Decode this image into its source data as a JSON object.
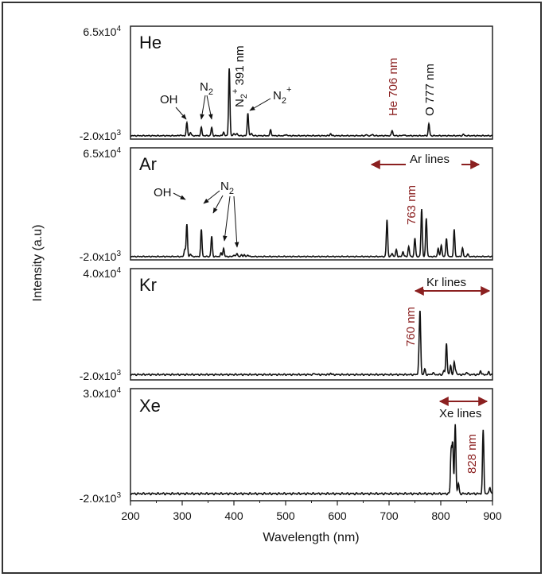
{
  "chart_data": {
    "type": "line",
    "xlabel": "Wavelength (nm)",
    "ylabel": "Intensity (a.u)",
    "xlim": [
      200,
      900
    ],
    "xticks": [
      "200",
      "300",
      "400",
      "500",
      "600",
      "700",
      "800",
      "900"
    ],
    "colors": {
      "line": "#111111",
      "accent": "#8b2020"
    },
    "panels": [
      {
        "gas": "He",
        "ylim_labels": {
          "top": "6.5x10",
          "top_exp": "4",
          "bottom": "-2.0x10",
          "bottom_exp": "3"
        },
        "ylim": [
          -2000,
          65000
        ],
        "peaks": [
          [
            296,
            0.5
          ],
          [
            309,
            7.5
          ],
          [
            316,
            2.0
          ],
          [
            337,
            4.8
          ],
          [
            357,
            4.8
          ],
          [
            380,
            2.2
          ],
          [
            391,
            40.0
          ],
          [
            400,
            1.5
          ],
          [
            406,
            1.5
          ],
          [
            427,
            13.5
          ],
          [
            434,
            1.5
          ],
          [
            471,
            3.5
          ],
          [
            501,
            0.8
          ],
          [
            587,
            1.2
          ],
          [
            656,
            0.6
          ],
          [
            668,
            0.8
          ],
          [
            706,
            3.2
          ],
          [
            728,
            0.6
          ],
          [
            777,
            7.0
          ],
          [
            844,
            0.8
          ]
        ],
        "annotations": [
          {
            "text": "OH"
          },
          {
            "text": "N",
            "sub": "2"
          },
          {
            "text": "N",
            "sub": "2",
            "sup": "+",
            "after": " 391 nm"
          },
          {
            "text": "N",
            "sub": "2",
            "sup": "+"
          },
          {
            "text": "He 706 nm"
          },
          {
            "text": "O 777 nm"
          }
        ]
      },
      {
        "gas": "Ar",
        "ylim_labels": {
          "top": "6.5x10",
          "top_exp": "4",
          "bottom": "-2.0x10",
          "bottom_exp": "3"
        },
        "ylim": [
          -2000,
          65000
        ],
        "peaks": [
          [
            305,
            4.5
          ],
          [
            309,
            19.0
          ],
          [
            316,
            1.5
          ],
          [
            337,
            16.0
          ],
          [
            357,
            12.0
          ],
          [
            375,
            2.0
          ],
          [
            380,
            5.0
          ],
          [
            400,
            1.0
          ],
          [
            406,
            2.0
          ],
          [
            415,
            1.0
          ],
          [
            420,
            1.0
          ],
          [
            427,
            1.0
          ],
          [
            696,
            22.0
          ],
          [
            706,
            2.0
          ],
          [
            714,
            4.0
          ],
          [
            727,
            3.0
          ],
          [
            738,
            6.0
          ],
          [
            750,
            11.0
          ],
          [
            763,
            28.5
          ],
          [
            772,
            23.0
          ],
          [
            795,
            5.0
          ],
          [
            801,
            7.0
          ],
          [
            811,
            11.0
          ],
          [
            826,
            16.0
          ],
          [
            842,
            5.0
          ],
          [
            852,
            1.5
          ]
        ],
        "annotations": [
          {
            "text": "OH"
          },
          {
            "text": "N",
            "sub": "2"
          },
          {
            "text": "Ar lines"
          },
          {
            "text": "763 nm"
          }
        ]
      },
      {
        "gas": "Kr",
        "ylim_labels": {
          "top": "4.0x10",
          "top_exp": "4",
          "bottom": "-2.0x10",
          "bottom_exp": "3"
        },
        "ylim": [
          -2000,
          40000
        ],
        "peaks": [
          [
            556,
            0.5
          ],
          [
            587,
            0.5
          ],
          [
            758,
            6.0
          ],
          [
            760,
            22.0
          ],
          [
            769,
            2.0
          ],
          [
            785,
            0.8
          ],
          [
            806,
            1.5
          ],
          [
            811,
            12.0
          ],
          [
            819,
            3.5
          ],
          [
            826,
            4.5
          ],
          [
            829,
            1.5
          ],
          [
            850,
            1.0
          ],
          [
            877,
            1.5
          ],
          [
            893,
            1.0
          ]
        ],
        "annotations": [
          {
            "text": "Kr lines"
          },
          {
            "text": "760 nm"
          }
        ]
      },
      {
        "gas": "Xe",
        "ylim_labels": {
          "top": "3.0x10",
          "top_exp": "4",
          "bottom": "-2.0x10",
          "bottom_exp": "3"
        },
        "ylim": [
          -2000,
          30000
        ],
        "peaks": [
          [
            820,
            12.0
          ],
          [
            823,
            14.0
          ],
          [
            828,
            20.0
          ],
          [
            834,
            3.0
          ],
          [
            882,
            18.0
          ],
          [
            895,
            2.0
          ]
        ],
        "annotations": [
          {
            "text": "Xe lines"
          },
          {
            "text": "828 nm"
          }
        ]
      }
    ]
  }
}
